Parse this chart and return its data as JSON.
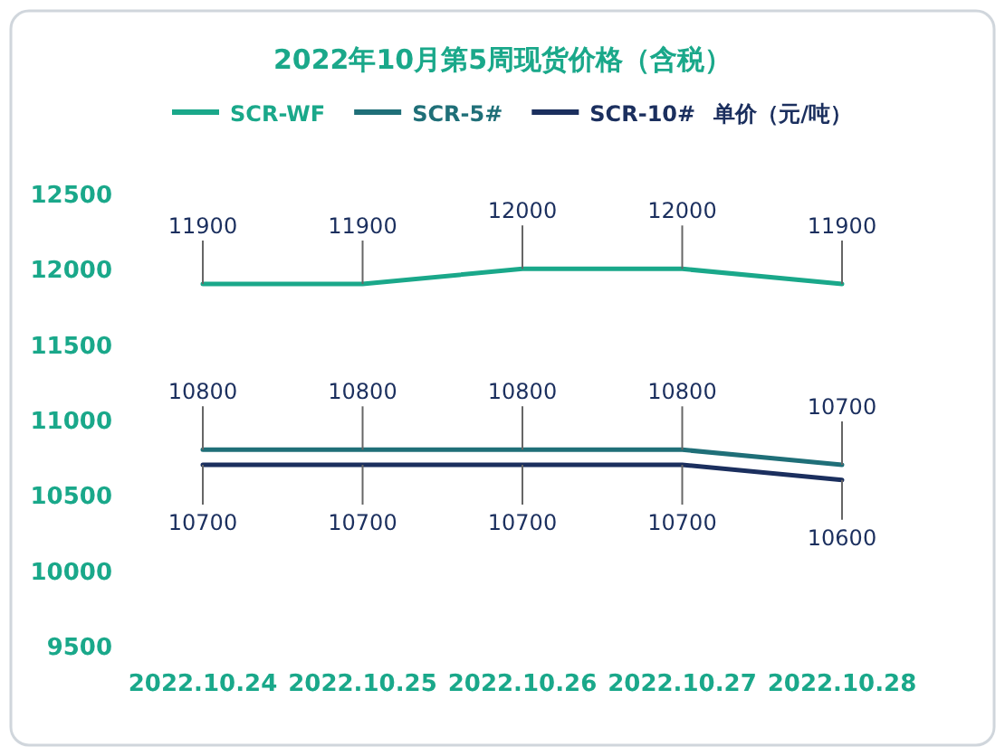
{
  "chart_data": {
    "type": "line",
    "title": "2022年10月第5周现货价格（含税）",
    "legend_title": "单价（元/吨）",
    "categories": [
      "2022.10.24",
      "2022.10.25",
      "2022.10.26",
      "2022.10.27",
      "2022.10.28"
    ],
    "series": [
      {
        "name": "SCR-WF",
        "color": "#1aa88a",
        "values": [
          11900,
          11900,
          12000,
          12000,
          11900
        ]
      },
      {
        "name": "SCR-5#",
        "color": "#1f6f78",
        "values": [
          10800,
          10800,
          10800,
          10800,
          10700
        ]
      },
      {
        "name": "SCR-10#",
        "color": "#1b2f5e",
        "values": [
          10700,
          10700,
          10700,
          10700,
          10600
        ]
      }
    ],
    "ylim": [
      9500,
      12500
    ],
    "yticks": [
      9500,
      10000,
      10500,
      11000,
      11500,
      12000,
      12500
    ],
    "data_labels": true,
    "legend": "top",
    "grid": false,
    "marker": "none",
    "line_style": "solid"
  }
}
